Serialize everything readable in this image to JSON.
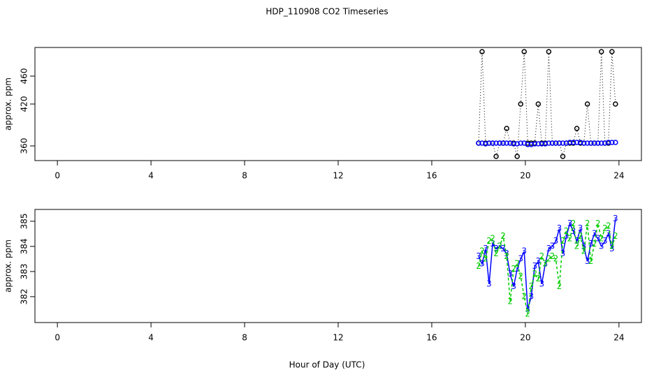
{
  "chart_data": [
    {
      "type": "line",
      "title": "HDP_110908  CO2 Timeseries",
      "y_label": "approx. ppm",
      "x": [
        18.0,
        18.15,
        18.3,
        18.45,
        18.6,
        18.75,
        18.9,
        19.05,
        19.2,
        19.35,
        19.5,
        19.65,
        19.8,
        19.95,
        20.1,
        20.25,
        20.4,
        20.55,
        20.7,
        20.85,
        21.0,
        21.15,
        21.3,
        21.45,
        21.6,
        21.75,
        21.9,
        22.05,
        22.2,
        22.35,
        22.5,
        22.65,
        22.8,
        22.95,
        23.1,
        23.25,
        23.4,
        23.55,
        23.7,
        23.85
      ],
      "series": [
        {
          "color": "#000000",
          "line_style": "dotted",
          "marker": "circle",
          "values": [
            364,
            495,
            364,
            364,
            364,
            345,
            364,
            364,
            385,
            364,
            364,
            345,
            420,
            495,
            364,
            364,
            364,
            420,
            364,
            364,
            495,
            364,
            364,
            364,
            345,
            364,
            364,
            364,
            385,
            364,
            364,
            420,
            364,
            364,
            364,
            495,
            364,
            364,
            495,
            420
          ]
        },
        {
          "color": "#0000ff",
          "line_style": "none",
          "marker": "circle",
          "values": [
            364,
            364,
            363,
            364,
            364,
            364,
            364,
            364,
            364,
            364,
            363,
            363,
            364,
            364,
            362,
            362,
            363,
            363,
            363,
            363,
            364,
            364,
            364,
            364,
            364,
            364,
            365,
            365,
            365,
            365,
            364,
            364,
            364,
            364,
            364,
            364,
            364,
            365,
            365,
            365
          ]
        }
      ],
      "xlim": [
        -0.96,
        24.96
      ],
      "xticks": [
        0,
        4,
        8,
        12,
        16,
        20,
        24
      ],
      "ylim": [
        339,
        501
      ],
      "yticks": [
        360,
        420,
        460
      ]
    },
    {
      "type": "line",
      "y_label": "approx. ppm",
      "x_label": "Hour of Day (UTC)",
      "x": [
        18.0,
        18.15,
        18.3,
        18.45,
        18.6,
        18.75,
        18.9,
        19.05,
        19.2,
        19.35,
        19.5,
        19.65,
        19.8,
        19.95,
        20.1,
        20.25,
        20.4,
        20.55,
        20.7,
        20.85,
        21.0,
        21.15,
        21.3,
        21.45,
        21.6,
        21.75,
        21.9,
        22.05,
        22.2,
        22.35,
        22.5,
        22.65,
        22.8,
        22.95,
        23.1,
        23.25,
        23.4,
        23.55,
        23.7,
        23.85
      ],
      "series": [
        {
          "color": "#0000ff",
          "line_style": "solid",
          "marker": "3",
          "values": [
            383.6,
            383.3,
            383.9,
            382.5,
            384.1,
            383.9,
            384.0,
            383.9,
            383.7,
            382.9,
            382.4,
            383.1,
            383.5,
            383.8,
            381.5,
            382.0,
            383.2,
            383.4,
            382.5,
            383.3,
            383.9,
            384.0,
            384.2,
            384.7,
            383.7,
            384.4,
            384.9,
            384.6,
            384.2,
            384.7,
            384.0,
            383.4,
            384.1,
            384.5,
            384.3,
            384.0,
            384.2,
            384.5,
            383.9,
            385.1
          ]
        },
        {
          "color": "#00cc00",
          "line_style": "dashed",
          "marker": "2",
          "values": [
            383.2,
            383.8,
            383.5,
            384.2,
            384.3,
            383.7,
            384.0,
            384.4,
            383.6,
            381.8,
            383.1,
            383.3,
            382.8,
            382.0,
            381.3,
            382.4,
            382.9,
            382.7,
            383.6,
            383.3,
            383.5,
            383.6,
            383.5,
            382.4,
            384.2,
            384.6,
            384.3,
            384.9,
            384.0,
            384.4,
            383.8,
            384.9,
            383.4,
            384.1,
            384.9,
            384.3,
            384.7,
            384.8,
            384.0,
            384.4
          ]
        }
      ],
      "xlim": [
        -0.96,
        24.96
      ],
      "xticks": [
        0,
        4,
        8,
        12,
        16,
        20,
        24
      ],
      "ylim": [
        380.97,
        385.47
      ],
      "yticks": [
        382,
        383,
        384,
        385
      ]
    }
  ]
}
